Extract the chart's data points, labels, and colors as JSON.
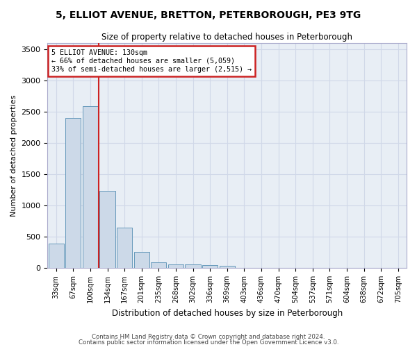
{
  "title1": "5, ELLIOT AVENUE, BRETTON, PETERBOROUGH, PE3 9TG",
  "title2": "Size of property relative to detached houses in Peterborough",
  "xlabel": "Distribution of detached houses by size in Peterborough",
  "ylabel": "Number of detached properties",
  "footnote1": "Contains HM Land Registry data © Crown copyright and database right 2024.",
  "footnote2": "Contains public sector information licensed under the Open Government Licence v3.0.",
  "bar_color": "#ccd9e8",
  "bar_edge_color": "#6699bb",
  "grid_color": "#d0d8e8",
  "annotation_box_color": "#cc2222",
  "vline_color": "#cc2222",
  "categories": [
    "33sqm",
    "67sqm",
    "100sqm",
    "134sqm",
    "167sqm",
    "201sqm",
    "235sqm",
    "268sqm",
    "302sqm",
    "336sqm",
    "369sqm",
    "403sqm",
    "436sqm",
    "470sqm",
    "504sqm",
    "537sqm",
    "571sqm",
    "604sqm",
    "638sqm",
    "672sqm",
    "705sqm"
  ],
  "values": [
    390,
    2400,
    2590,
    1230,
    640,
    260,
    95,
    60,
    55,
    40,
    30,
    0,
    0,
    0,
    0,
    0,
    0,
    0,
    0,
    0,
    0
  ],
  "ylim": [
    0,
    3600
  ],
  "yticks": [
    0,
    500,
    1000,
    1500,
    2000,
    2500,
    3000,
    3500
  ],
  "property_label": "5 ELLIOT AVENUE: 130sqm",
  "pct_smaller": "66% of detached houses are smaller (5,059)",
  "pct_larger": "33% of semi-detached houses are larger (2,515)",
  "vline_x": 2.5,
  "figsize": [
    6.0,
    5.0
  ],
  "dpi": 100
}
